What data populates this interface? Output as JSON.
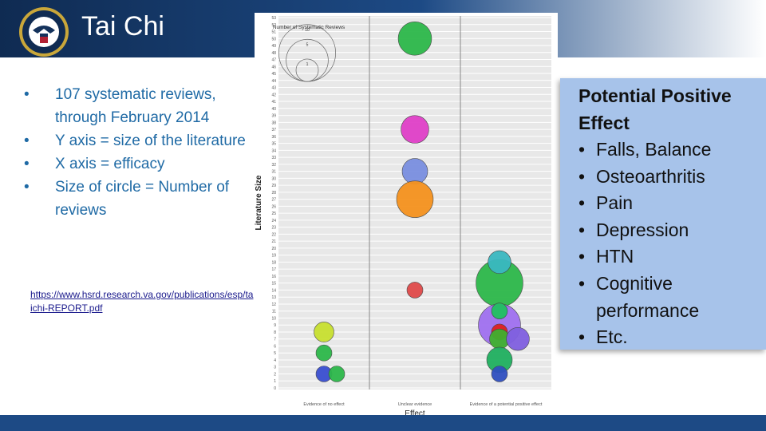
{
  "slide": {
    "title": "Tai Chi",
    "bullets": [
      "107 systematic reviews, through February 2014",
      "Y axis = size of the literature",
      "X axis = efficacy",
      "Size of circle = Number of reviews"
    ],
    "link_text": "https://www.hsrd.research.va.gov/publications/esp/taichi-REPORT.pdf"
  },
  "callout": {
    "title_line1": "Potential Positive",
    "title_line2": "Effect",
    "items": [
      "Falls, Balance",
      "Osteoarthritis",
      "Pain",
      "Depression",
      "HTN",
      "Cognitive performance",
      "Etc."
    ]
  },
  "colors": {
    "header": "#14325c",
    "accent_text": "#1f6aa5",
    "callout_bg": "#a7c3ea",
    "plot_bg": "#e8e8e8"
  },
  "icons": {
    "logo": "va-seal-icon"
  },
  "chart_data": {
    "type": "scatter",
    "title": "",
    "xlabel": "Effect",
    "ylabel": "Literature Size",
    "ylim": [
      0,
      53
    ],
    "yticks": [
      0,
      1,
      2,
      3,
      4,
      5,
      6,
      7,
      8,
      9,
      10,
      11,
      12,
      13,
      14,
      15,
      16,
      17,
      18,
      19,
      20,
      21,
      22,
      23,
      24,
      25,
      26,
      27,
      28,
      29,
      30,
      31,
      32,
      33,
      34,
      35,
      36,
      37,
      38,
      39,
      40,
      41,
      42,
      43,
      44,
      45,
      46,
      47,
      48,
      49,
      50,
      51,
      52,
      53
    ],
    "x_categories": [
      "Evidence of no effect",
      "Unclear evidence",
      "Evidence of a potential positive effect"
    ],
    "grid": true,
    "legend": {
      "title": "Number of Systematic Reviews",
      "sizes": [
        10,
        5,
        1
      ],
      "placement": "top-left"
    },
    "points": [
      {
        "category": "Unclear evidence",
        "y": 50,
        "size": 8,
        "color": "#2db84a"
      },
      {
        "category": "Unclear evidence",
        "y": 37,
        "size": 5,
        "color": "#e040c8"
      },
      {
        "category": "Unclear evidence",
        "y": 31,
        "size": 4,
        "color": "#7a8fe0"
      },
      {
        "category": "Unclear evidence",
        "y": 27,
        "size": 10,
        "color": "#f5921e"
      },
      {
        "category": "Unclear evidence",
        "y": 14,
        "size": 1,
        "color": "#e04a4a"
      },
      {
        "category": "Evidence of no effect",
        "y": 8,
        "size": 2,
        "color": "#c8e030"
      },
      {
        "category": "Evidence of no effect",
        "y": 5,
        "size": 1,
        "color": "#2db84a"
      },
      {
        "category": "Evidence of no effect",
        "y": 2,
        "size": 1,
        "color": "#3a4fd0"
      },
      {
        "category": "Evidence of no effect",
        "y": 2,
        "size": 1,
        "color": "#2db84a"
      },
      {
        "category": "Evidence of a potential positive effect",
        "y": 15,
        "size": 18,
        "color": "#2db84a"
      },
      {
        "category": "Evidence of a potential positive effect",
        "y": 18,
        "size": 3,
        "color": "#3ab8c0"
      },
      {
        "category": "Evidence of a potential positive effect",
        "y": 9,
        "size": 14,
        "color": "#a070f0"
      },
      {
        "category": "Evidence of a potential positive effect",
        "y": 11,
        "size": 1,
        "color": "#20c060"
      },
      {
        "category": "Evidence of a potential positive effect",
        "y": 8,
        "size": 1,
        "color": "#e02020"
      },
      {
        "category": "Evidence of a potential positive effect",
        "y": 7,
        "size": 2,
        "color": "#40b030"
      },
      {
        "category": "Evidence of a potential positive effect",
        "y": 7,
        "size": 3,
        "color": "#8060e0"
      },
      {
        "category": "Evidence of a potential positive effect",
        "y": 4,
        "size": 4,
        "color": "#20b060"
      },
      {
        "category": "Evidence of a potential positive effect",
        "y": 2,
        "size": 1,
        "color": "#3050c0"
      }
    ]
  }
}
